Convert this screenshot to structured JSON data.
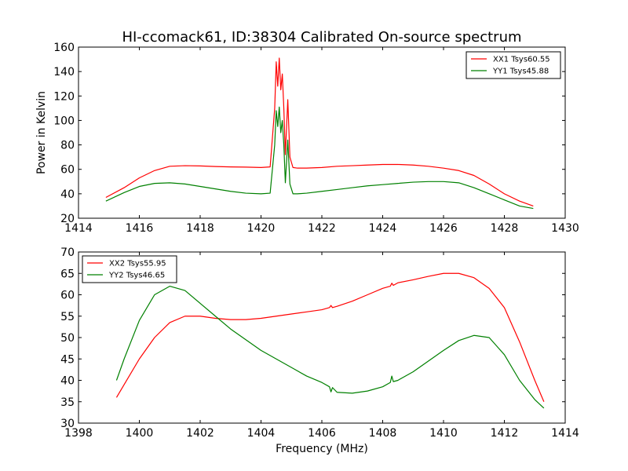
{
  "title": "HI-ccomack61, ID:38304 Calibrated On-source spectrum",
  "xlabel": "Frequency (MHz)",
  "colors": {
    "red": "#ff0000",
    "green": "#008000"
  },
  "chart_data": [
    {
      "type": "line",
      "ylabel": "Power in Kelvin",
      "xlim": [
        1414,
        1430
      ],
      "ylim": [
        20,
        160
      ],
      "xticks": [
        1414,
        1416,
        1418,
        1420,
        1422,
        1424,
        1426,
        1428,
        1430
      ],
      "yticks": [
        20,
        40,
        60,
        80,
        100,
        120,
        140,
        160
      ],
      "legend": "top-right",
      "series": [
        {
          "name": "XX1 Tsys60.55",
          "color": "red",
          "x": [
            1414.9,
            1415.5,
            1416,
            1416.5,
            1417,
            1417.5,
            1418,
            1418.5,
            1419,
            1419.5,
            1420,
            1420.3,
            1420.45,
            1420.5,
            1420.55,
            1420.6,
            1420.65,
            1420.7,
            1420.75,
            1420.8,
            1420.88,
            1420.95,
            1421.05,
            1421.2,
            1421.5,
            1422,
            1422.5,
            1423,
            1423.5,
            1424,
            1424.5,
            1425,
            1425.5,
            1426,
            1426.5,
            1427,
            1427.5,
            1428,
            1428.5,
            1428.95
          ],
          "y": [
            37,
            45,
            53,
            59,
            62.5,
            63,
            62.8,
            62.3,
            62,
            61.8,
            61.5,
            62,
            110,
            148,
            128,
            151,
            125,
            138,
            110,
            72,
            117,
            70,
            61.5,
            61,
            61,
            61.5,
            62.5,
            63,
            63.5,
            64,
            64,
            63.5,
            62.5,
            61,
            59,
            55,
            48,
            40,
            34,
            30
          ]
        },
        {
          "name": "YY1 Tsys45.88",
          "color": "green",
          "x": [
            1414.9,
            1415.5,
            1416,
            1416.5,
            1417,
            1417.5,
            1418,
            1418.5,
            1419,
            1419.5,
            1420,
            1420.3,
            1420.45,
            1420.5,
            1420.55,
            1420.6,
            1420.65,
            1420.7,
            1420.75,
            1420.8,
            1420.88,
            1420.95,
            1421.05,
            1421.2,
            1421.5,
            1422,
            1422.5,
            1423,
            1423.5,
            1424,
            1424.5,
            1425,
            1425.5,
            1426,
            1426.5,
            1427,
            1427.5,
            1428,
            1428.5,
            1428.95
          ],
          "y": [
            34,
            41,
            46,
            48.5,
            49,
            48,
            46,
            44,
            42,
            40.5,
            40,
            40.5,
            80,
            108,
            95,
            111,
            90,
            100,
            80,
            49,
            84,
            48,
            40,
            40,
            40.5,
            42,
            43.5,
            45,
            46.5,
            47.5,
            48.5,
            49.5,
            50,
            50,
            49,
            45,
            40,
            35,
            30,
            28
          ]
        }
      ]
    },
    {
      "type": "line",
      "xlabel": "Frequency (MHz)",
      "xlim": [
        1398,
        1414
      ],
      "ylim": [
        30,
        70
      ],
      "xticks": [
        1398,
        1400,
        1402,
        1404,
        1406,
        1408,
        1410,
        1412,
        1414
      ],
      "yticks": [
        30,
        35,
        40,
        45,
        50,
        55,
        60,
        65,
        70
      ],
      "legend": "top-left",
      "series": [
        {
          "name": "XX2 Tsys55.95",
          "color": "red",
          "x": [
            1399.25,
            1399.5,
            1400,
            1400.5,
            1401,
            1401.5,
            1402,
            1402.5,
            1403,
            1403.5,
            1404,
            1404.5,
            1405,
            1405.5,
            1406,
            1406.25,
            1406.3,
            1406.35,
            1406.5,
            1407,
            1407.5,
            1408,
            1408.25,
            1408.3,
            1408.35,
            1408.5,
            1409,
            1409.5,
            1410,
            1410.5,
            1411,
            1411.5,
            1412,
            1412.5,
            1413,
            1413.3
          ],
          "y": [
            36,
            39,
            45,
            50,
            53.5,
            55,
            55,
            54.5,
            54.2,
            54.2,
            54.5,
            55,
            55.5,
            56,
            56.5,
            57,
            57.5,
            57,
            57.3,
            58.5,
            60,
            61.5,
            62,
            62.7,
            62.2,
            62.8,
            63.5,
            64.3,
            65,
            65,
            64,
            61.5,
            57,
            49,
            40,
            35
          ]
        },
        {
          "name": "YY2 Tsys46.65",
          "color": "green",
          "x": [
            1399.25,
            1399.5,
            1400,
            1400.5,
            1401,
            1401.5,
            1402,
            1402.5,
            1403,
            1403.5,
            1404,
            1404.5,
            1405,
            1405.5,
            1406,
            1406.25,
            1406.3,
            1406.35,
            1406.5,
            1407,
            1407.5,
            1408,
            1408.25,
            1408.3,
            1408.35,
            1408.5,
            1409,
            1409.5,
            1410,
            1410.5,
            1411,
            1411.5,
            1412,
            1412.5,
            1413,
            1413.3
          ],
          "y": [
            40,
            45,
            54,
            60,
            62,
            61,
            58,
            55,
            52,
            49.5,
            47,
            45,
            43,
            41,
            39.5,
            38.5,
            37.3,
            38.3,
            37.2,
            37,
            37.5,
            38.5,
            39.5,
            41,
            39.7,
            40,
            42,
            44.5,
            47,
            49.3,
            50.5,
            50,
            46,
            40,
            35.5,
            33.5
          ]
        }
      ]
    }
  ]
}
